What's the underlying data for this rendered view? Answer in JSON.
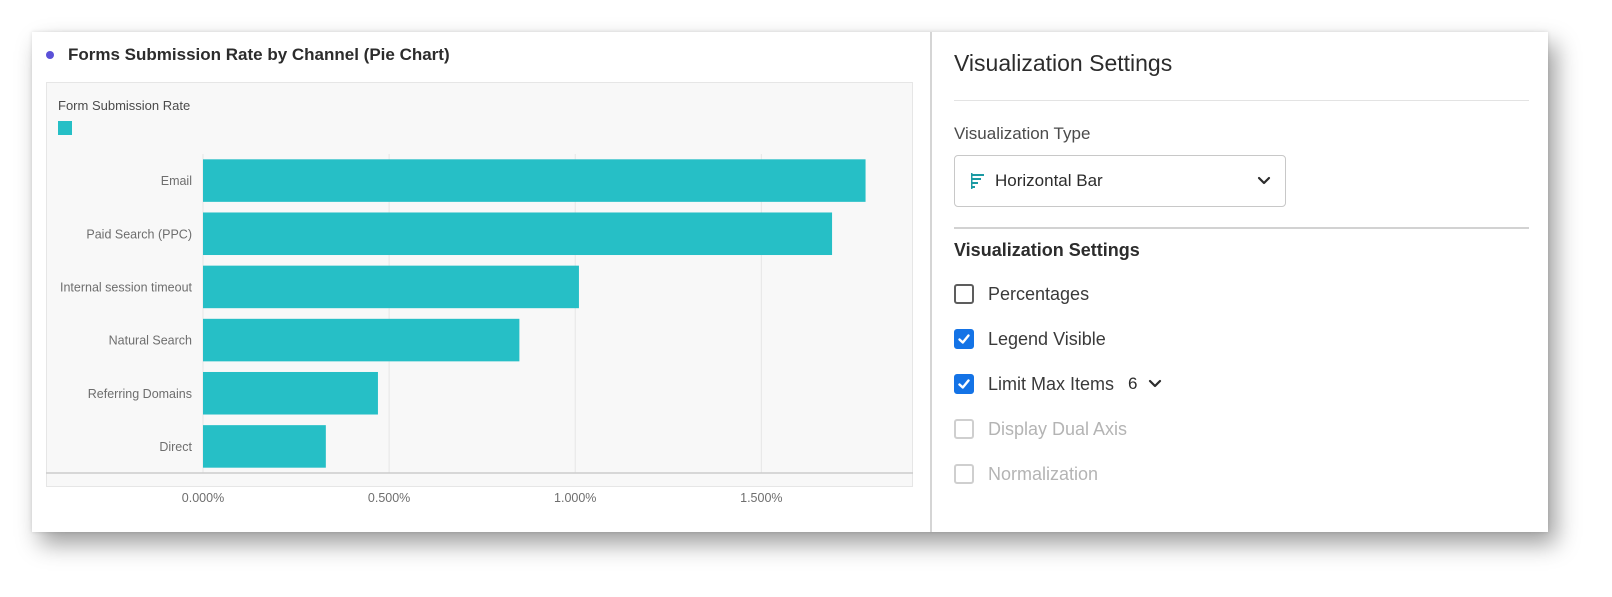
{
  "chart_panel": {
    "title": "Forms Submission Rate by Channel (Pie Chart)",
    "dot_color": "#5b51d8",
    "legend_title": "Form Submission Rate",
    "bar_color": "#26bfc6"
  },
  "chart_data": {
    "type": "bar",
    "orientation": "horizontal",
    "categories": [
      "Email",
      "Paid Search (PPC)",
      "Internal session timeout",
      "Natural Search",
      "Referring Domains",
      "Direct"
    ],
    "values": [
      1.78,
      1.69,
      1.01,
      0.85,
      0.47,
      0.33
    ],
    "xlim": [
      0,
      1.8
    ],
    "x_ticks": [
      0,
      0.5,
      1.0,
      1.5
    ],
    "x_tick_labels": [
      "0.000%",
      "0.500%",
      "1.000%",
      "1.500%"
    ],
    "legend": [
      {
        "name": "Form Submission Rate",
        "color": "#26bfc6"
      }
    ],
    "grid": "vertical"
  },
  "settings": {
    "title": "Visualization Settings",
    "type_label": "Visualization Type",
    "type_value": "Horizontal Bar",
    "type_icon": "horizontal-bar-icon",
    "section_title": "Visualization Settings",
    "options": {
      "percentages": {
        "label": "Percentages",
        "checked": false,
        "disabled": false
      },
      "legend_visible": {
        "label": "Legend Visible",
        "checked": true,
        "disabled": false
      },
      "limit_max_items": {
        "label": "Limit Max Items",
        "checked": true,
        "disabled": false,
        "value": "6"
      },
      "dual_axis": {
        "label": "Display Dual Axis",
        "checked": false,
        "disabled": true
      },
      "normalization": {
        "label": "Normalization",
        "checked": false,
        "disabled": true
      }
    },
    "accent_color": "#1473e6"
  }
}
